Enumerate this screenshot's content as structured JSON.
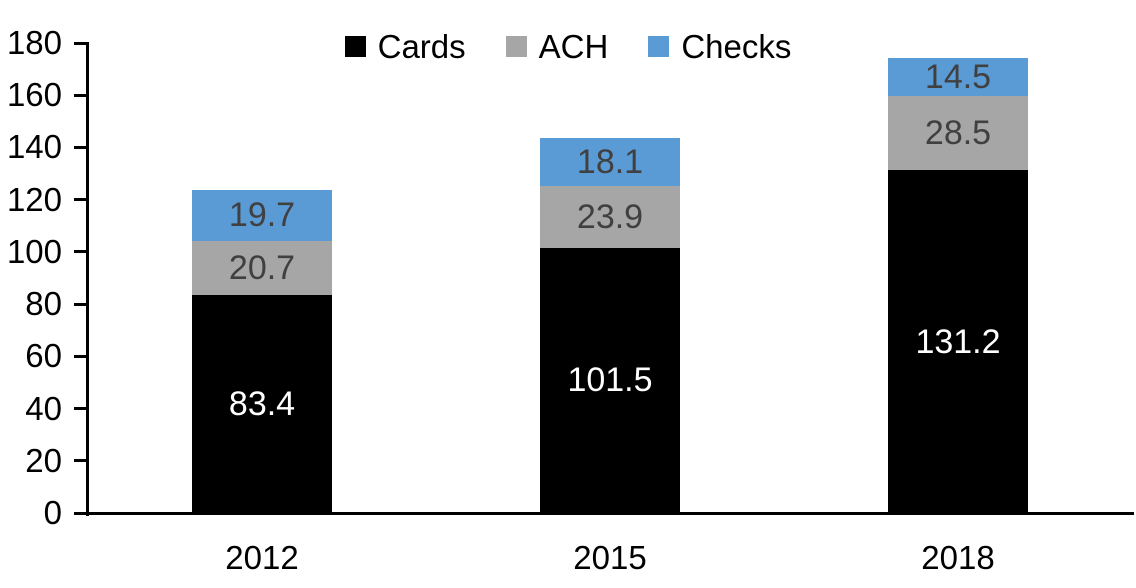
{
  "chart_data": {
    "type": "bar",
    "stacked": true,
    "title": "",
    "xlabel": "",
    "ylabel": "",
    "categories": [
      "2012",
      "2015",
      "2018"
    ],
    "series": [
      {
        "name": "Cards",
        "color": "#000000",
        "label_color": "#ffffff",
        "values": [
          83.4,
          101.5,
          131.2
        ]
      },
      {
        "name": "ACH",
        "color": "#a6a6a6",
        "label_color": "#404040",
        "values": [
          20.7,
          23.9,
          28.5
        ]
      },
      {
        "name": "Checks",
        "color": "#5b9bd5",
        "label_color": "#404040",
        "values": [
          19.7,
          18.1,
          14.5
        ]
      }
    ],
    "totals": [
      123.8,
      143.5,
      174.2
    ],
    "ylim": [
      0,
      180
    ],
    "yticks": [
      0,
      20,
      40,
      60,
      80,
      100,
      120,
      140,
      160,
      180
    ],
    "legend_position": "top-center",
    "grid": false,
    "colors": {
      "axis": "#000000",
      "background": "#ffffff",
      "tick_label": "#000000"
    }
  }
}
